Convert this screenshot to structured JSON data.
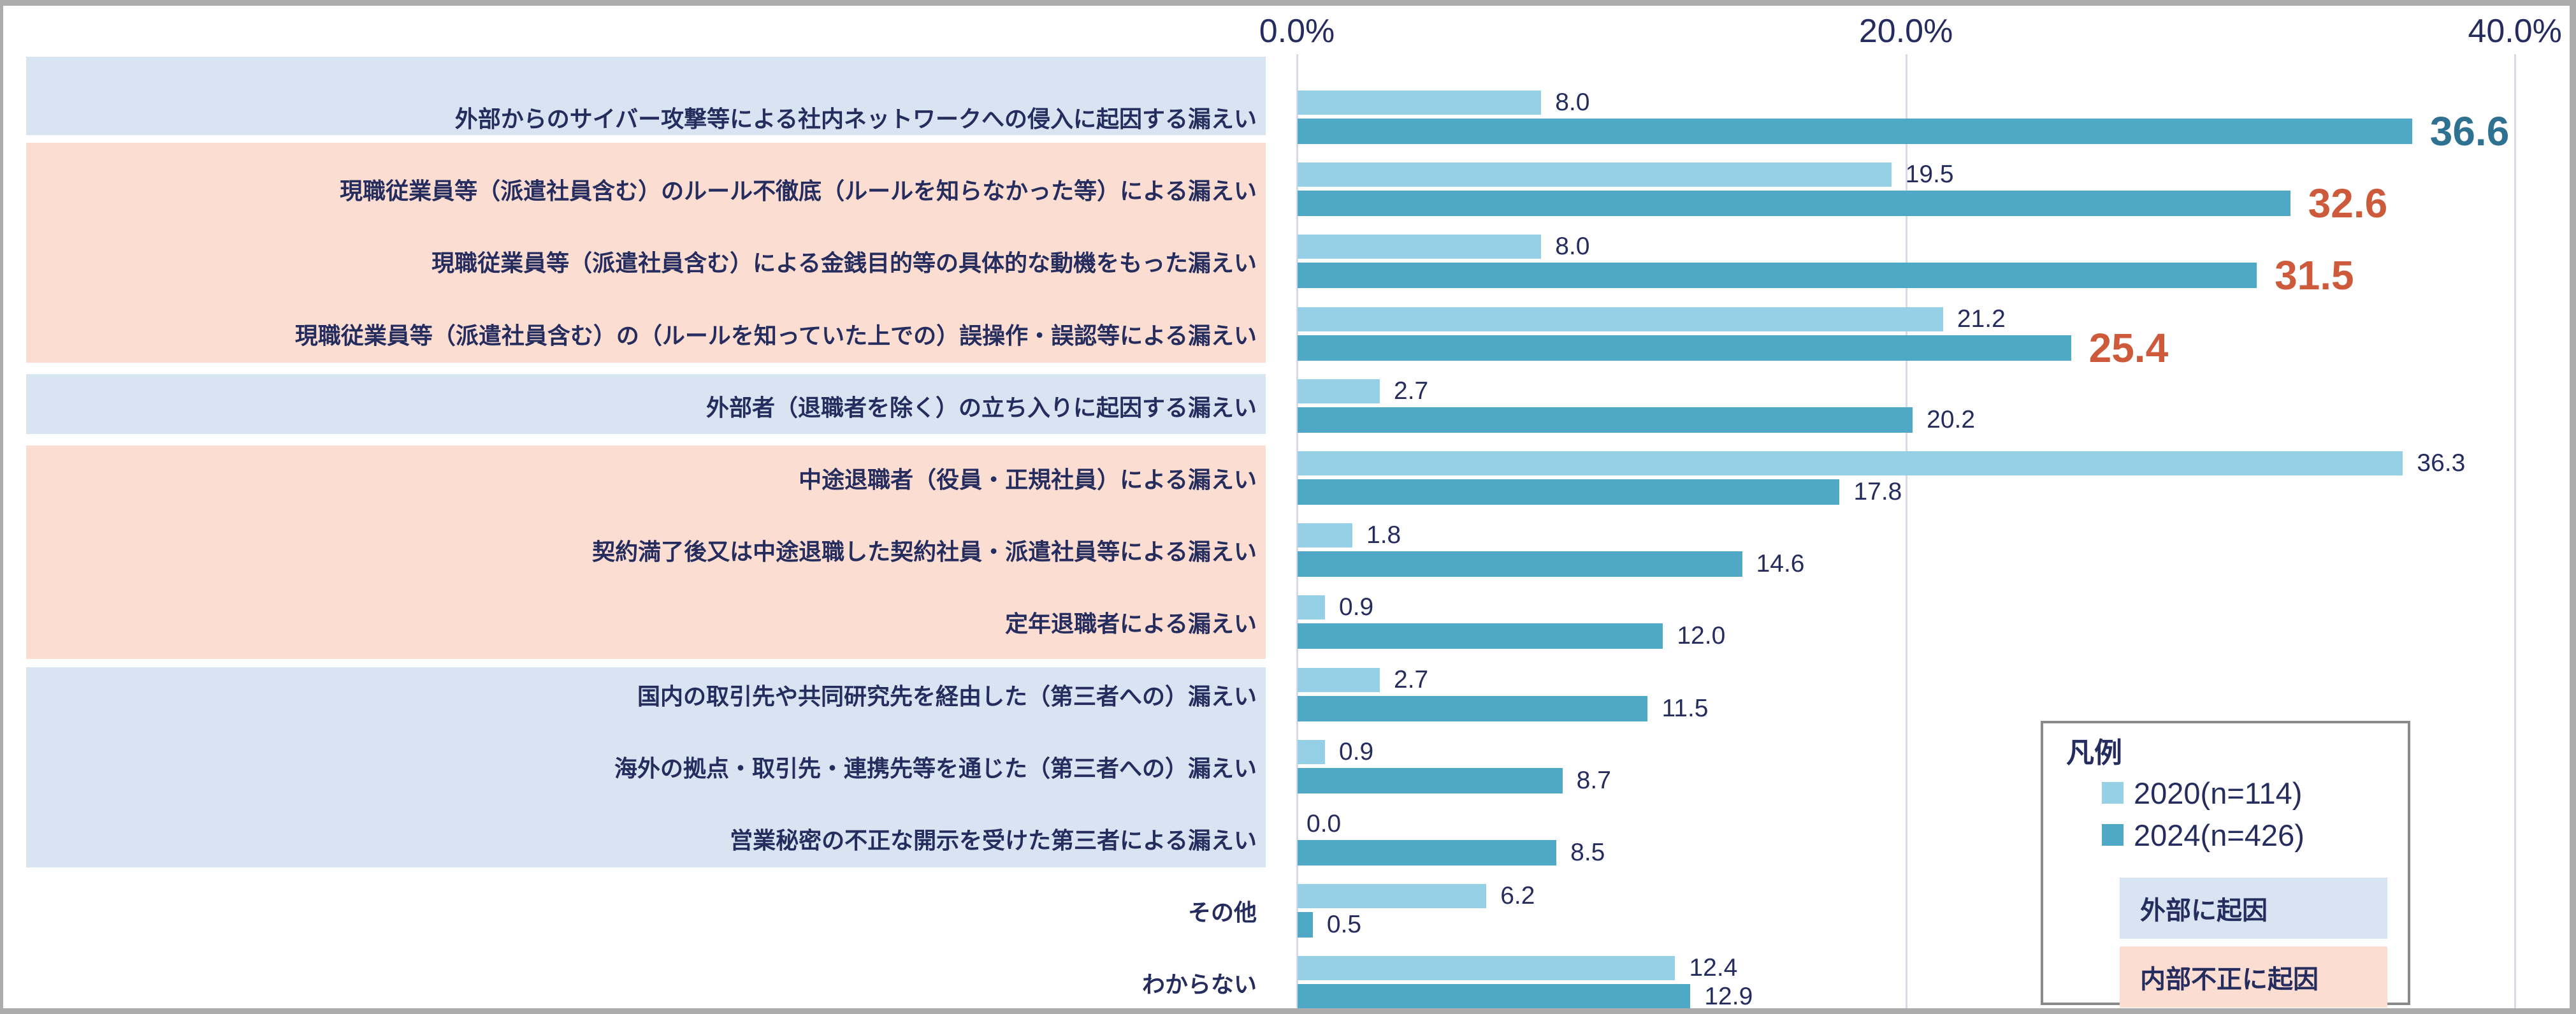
{
  "colors": {
    "bar_2020": "#96D0E6",
    "bar_2024": "#4FA9C6",
    "emph_teal": "#2F7190",
    "emph_orange": "#CC5A3B",
    "navy_text": "#252C5E",
    "bg_external": "#D8E4F1",
    "bg_internal": "#FBDDD1",
    "gridline": "#D9D9EA",
    "frame_gray": "#ACACAC",
    "legend_border": "#8A8A8A"
  },
  "axis": {
    "ticks": [
      "0.0%",
      "20.0%",
      "40.0%"
    ],
    "tick_values": [
      0,
      20,
      40
    ]
  },
  "legend": {
    "title": "凡例",
    "items": [
      {
        "label": "2020(n=114)",
        "color_key": "bar_2020"
      },
      {
        "label": "2024(n=426)",
        "color_key": "bar_2024"
      }
    ],
    "group_boxes": [
      {
        "label": "外部に起因",
        "type": "external"
      },
      {
        "label": "内部不正に起因",
        "type": "internal"
      }
    ]
  },
  "chart_data": {
    "type": "bar",
    "orientation": "horizontal",
    "title": "",
    "xlabel": "",
    "ylabel": "",
    "xlim": [
      0,
      40
    ],
    "grid": true,
    "legend_position": "bottom-right",
    "categories": [
      "外部からのサイバー攻撃等による社内ネットワークへの侵入に起因する漏えい",
      "現職従業員等（派遣社員含む）のルール不徹底（ルールを知らなかった等）による漏えい",
      "現職従業員等（派遣社員含む）による金銭目的等の具体的な動機をもった漏えい",
      "現職従業員等（派遣社員含む）の（ルールを知っていた上での）誤操作・誤認等による漏えい",
      "外部者（退職者を除く）の立ち入りに起因する漏えい",
      "中途退職者（役員・正規社員）による漏えい",
      "契約満了後又は中途退職した契約社員・派遣社員等による漏えい",
      "定年退職者による漏えい",
      "国内の取引先や共同研究先を経由した（第三者への）漏えい",
      "海外の拠点・取引先・連携先等を通じた（第三者への）漏えい",
      "営業秘密の不正な開示を受けた第三者による漏えい",
      "その他",
      "わからない"
    ],
    "category_groups": [
      "external",
      "internal",
      "internal",
      "internal",
      "external",
      "internal",
      "internal",
      "internal",
      "external",
      "external",
      "external",
      "none",
      "none"
    ],
    "series": [
      {
        "name": "2020(n=114)",
        "values": [
          8.0,
          19.5,
          8.0,
          21.2,
          2.7,
          36.3,
          1.8,
          0.9,
          2.7,
          0.9,
          0.0,
          6.2,
          12.4
        ]
      },
      {
        "name": "2024(n=426)",
        "values": [
          36.6,
          32.6,
          31.5,
          25.4,
          20.2,
          17.8,
          14.6,
          12.0,
          11.5,
          8.7,
          8.5,
          0.5,
          12.9
        ]
      }
    ],
    "value_emphasis": [
      {
        "row": 0,
        "series": "2024(n=426)",
        "style": "teal"
      },
      {
        "row": 1,
        "series": "2024(n=426)",
        "style": "orange"
      },
      {
        "row": 2,
        "series": "2024(n=426)",
        "style": "orange"
      },
      {
        "row": 3,
        "series": "2024(n=426)",
        "style": "orange"
      }
    ]
  }
}
